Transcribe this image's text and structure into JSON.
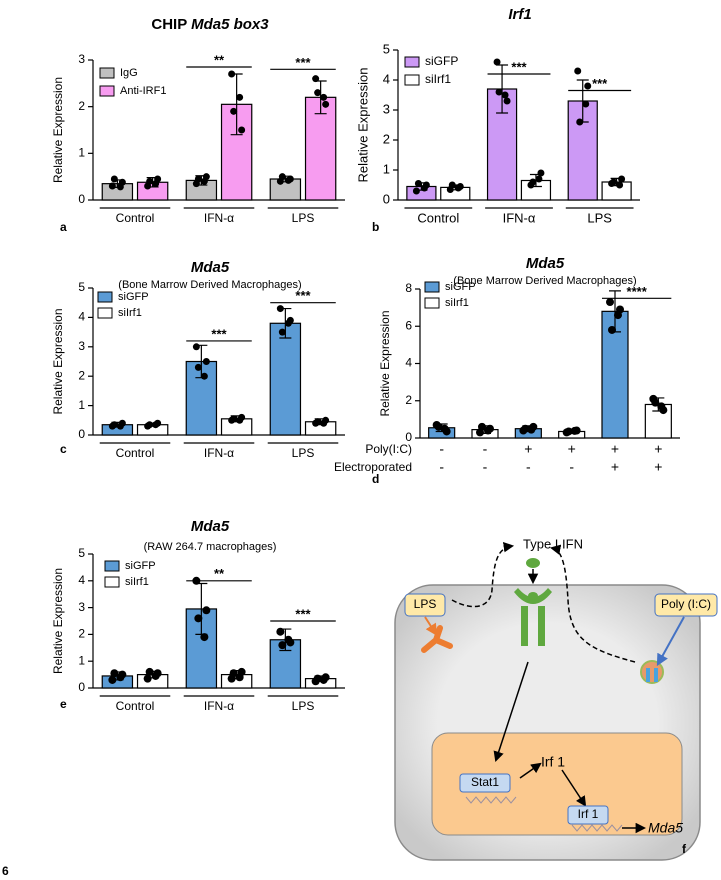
{
  "figure_number": "6",
  "chart_data": [
    {
      "type": "bar",
      "panel": "a",
      "title": [
        {
          "text": "CHIP ",
          "italic": false
        },
        {
          "text": "Mda5 box3",
          "italic": true
        }
      ],
      "ylabel": "Relative Expression",
      "categories": [
        "Control",
        "IFN-α",
        "LPS"
      ],
      "ylim": [
        0,
        3
      ],
      "yticks": [
        0,
        1,
        2,
        3
      ],
      "series": [
        {
          "name": "IgG",
          "color": "#c0c0c0",
          "values": [
            0.35,
            0.42,
            0.45
          ],
          "errors": [
            0.08,
            0.1,
            0.06
          ],
          "points": [
            [
              0.3,
              0.38,
              0.45,
              0.28
            ],
            [
              0.35,
              0.5,
              0.45,
              0.4
            ],
            [
              0.4,
              0.45,
              0.5,
              0.42
            ]
          ]
        },
        {
          "name": "Anti-IRF1",
          "color": "#f79cf0",
          "values": [
            0.38,
            2.05,
            2.2
          ],
          "errors": [
            0.1,
            0.65,
            0.35
          ],
          "points": [
            [
              0.3,
              0.45,
              0.4,
              0.35
            ],
            [
              2.7,
              1.5,
              1.9,
              2.2
            ],
            [
              2.6,
              2.05,
              2.3,
              2.2
            ]
          ]
        }
      ],
      "significance": [
        {
          "categories": [
            1
          ],
          "y": 2.85,
          "label": "**"
        },
        {
          "categories": [
            2
          ],
          "y": 2.8,
          "label": "***"
        }
      ]
    },
    {
      "type": "bar",
      "panel": "b",
      "title": [
        {
          "text": "Irf1",
          "italic": true
        }
      ],
      "ylabel": "Relative Expression",
      "categories": [
        "Control",
        "IFN-α",
        "LPS"
      ],
      "ylim": [
        0,
        5
      ],
      "yticks": [
        0,
        1,
        2,
        3,
        4,
        5
      ],
      "series": [
        {
          "name": "siGFP",
          "color": "#cc99f5",
          "values": [
            0.45,
            3.7,
            3.3
          ],
          "errors": [
            0.12,
            0.8,
            0.7
          ],
          "points": [
            [
              0.3,
              0.5,
              0.55,
              0.4
            ],
            [
              4.6,
              3.3,
              3.6,
              3.5
            ],
            [
              4.3,
              3.8,
              2.6,
              3.2
            ]
          ]
        },
        {
          "name": "siIrf1",
          "color": "#ffffff",
          "values": [
            0.42,
            0.65,
            0.6
          ],
          "errors": [
            0.08,
            0.2,
            0.12
          ],
          "points": [
            [
              0.35,
              0.45,
              0.5,
              0.4
            ],
            [
              0.5,
              0.9,
              0.6,
              0.7
            ],
            [
              0.55,
              0.7,
              0.6,
              0.5
            ]
          ]
        }
      ],
      "significance": [
        {
          "categories": [
            1
          ],
          "y": 4.2,
          "label": "***"
        },
        {
          "categories": [
            2
          ],
          "y": 3.65,
          "label": "***"
        }
      ]
    },
    {
      "type": "bar",
      "panel": "c",
      "title": [
        {
          "text": "Mda5",
          "italic": true
        }
      ],
      "subtitle": "(Bone Marrow Derived Macrophages)",
      "ylabel": "Relative Expression",
      "categories": [
        "Control",
        "IFN-α",
        "LPS"
      ],
      "ylim": [
        0,
        5
      ],
      "yticks": [
        0,
        1,
        2,
        3,
        4,
        5
      ],
      "series": [
        {
          "name": "siGFP",
          "color": "#5b9bd5",
          "values": [
            0.35,
            2.5,
            3.8
          ],
          "errors": [
            0.08,
            0.55,
            0.5
          ],
          "points": [
            [
              0.3,
              0.4,
              0.35,
              0.3
            ],
            [
              3.0,
              2.5,
              2.3,
              2.0
            ],
            [
              4.3,
              3.9,
              3.5,
              3.8
            ]
          ]
        },
        {
          "name": "siIrf1",
          "color": "#ffffff",
          "values": [
            0.35,
            0.55,
            0.45
          ],
          "errors": [
            0.05,
            0.1,
            0.1
          ],
          "points": [
            [
              0.3,
              0.4,
              0.35,
              0.35
            ],
            [
              0.5,
              0.6,
              0.55,
              0.5
            ],
            [
              0.4,
              0.5,
              0.45,
              0.4
            ]
          ]
        }
      ],
      "significance": [
        {
          "categories": [
            1
          ],
          "y": 3.2,
          "label": "***"
        },
        {
          "categories": [
            2
          ],
          "y": 4.5,
          "label": "***"
        }
      ]
    },
    {
      "type": "bar",
      "panel": "d",
      "layout": "single",
      "title": [
        {
          "text": "Mda5",
          "italic": true
        }
      ],
      "subtitle": "(Bone Marrow Derived Macrophages)",
      "ylabel": "Relative Expression",
      "rows": [
        {
          "label": "Poly(I:C)",
          "values": [
            "-",
            "-",
            "+",
            "+",
            "+",
            "+"
          ]
        },
        {
          "label": "Electroporated",
          "values": [
            "-",
            "-",
            "-",
            "-",
            "+",
            "+"
          ]
        }
      ],
      "ylim": [
        0,
        8
      ],
      "yticks": [
        0,
        2,
        4,
        6,
        8
      ],
      "series": [
        {
          "name": "siGFP",
          "color": "#5b9bd5",
          "values": [
            0.55,
            null,
            0.5,
            null,
            6.8,
            null
          ],
          "errors": [
            0.2,
            null,
            0.15,
            null,
            1.1,
            null
          ],
          "points": [
            [
              0.7,
              0.35,
              0.6,
              0.5
            ],
            null,
            [
              0.4,
              0.6,
              0.5,
              0.45
            ],
            null,
            [
              7.3,
              6.9,
              5.8,
              6.6
            ],
            null
          ]
        },
        {
          "name": "siIrf1",
          "color": "#ffffff",
          "values": [
            null,
            0.45,
            null,
            0.35,
            null,
            1.8
          ],
          "errors": [
            null,
            0.2,
            null,
            0.1,
            null,
            0.35
          ],
          "points": [
            null,
            [
              0.3,
              0.5,
              0.6,
              0.4
            ],
            null,
            [
              0.3,
              0.4,
              0.35,
              0.38
            ],
            null,
            [
              2.1,
              1.5,
              1.9,
              1.7
            ]
          ]
        }
      ],
      "significance": [
        {
          "categories": [
            4,
            5
          ],
          "y": 7.5,
          "label": "****"
        }
      ]
    },
    {
      "type": "bar",
      "panel": "e",
      "title": [
        {
          "text": "Mda5",
          "italic": true
        }
      ],
      "subtitle": "(RAW 264.7 macrophages)",
      "ylabel": "Relative Expression",
      "categories": [
        "Control",
        "IFN-α",
        "LPS"
      ],
      "ylim": [
        0,
        5
      ],
      "yticks": [
        0,
        1,
        2,
        3,
        4,
        5
      ],
      "series": [
        {
          "name": "siGFP",
          "color": "#5b9bd5",
          "values": [
            0.45,
            2.95,
            1.8
          ],
          "errors": [
            0.15,
            0.95,
            0.4
          ],
          "points": [
            [
              0.3,
              0.5,
              0.55,
              0.4
            ],
            [
              4.0,
              2.9,
              2.6,
              1.9
            ],
            [
              2.1,
              1.7,
              1.6,
              1.8
            ]
          ]
        },
        {
          "name": "siIrf1",
          "color": "#ffffff",
          "values": [
            0.5,
            0.5,
            0.35
          ],
          "errors": [
            0.12,
            0.15,
            0.1
          ],
          "points": [
            [
              0.35,
              0.55,
              0.6,
              0.45
            ],
            [
              0.35,
              0.6,
              0.55,
              0.4
            ],
            [
              0.25,
              0.4,
              0.35,
              0.3
            ]
          ]
        }
      ],
      "significance": [
        {
          "categories": [
            1
          ],
          "y": 4.0,
          "label": "**"
        },
        {
          "categories": [
            2
          ],
          "y": 2.5,
          "label": "***"
        }
      ]
    }
  ],
  "diagram": {
    "ligand": "Type I IFN",
    "lps": "LPS",
    "poly_ic": "Poly (I:C)",
    "irf1": "Irf 1",
    "stat1": "Stat1",
    "irf1_gene": "Irf 1",
    "target": "Mda5",
    "panel_label": "f"
  }
}
